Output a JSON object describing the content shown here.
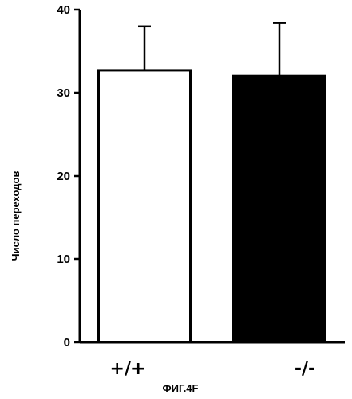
{
  "chart_data": {
    "type": "bar",
    "categories": [
      "+/+",
      "-/-"
    ],
    "values": [
      32.7,
      32.0
    ],
    "error_upper": [
      38.0,
      38.4
    ],
    "bar_fills": [
      "#ffffff",
      "#000000"
    ],
    "ylabel": "Число переходов",
    "xlabel": "",
    "ylim": [
      0,
      40
    ],
    "yticks": [
      "0",
      "10",
      "20",
      "30",
      "40"
    ],
    "grid": false
  },
  "figure": {
    "caption": "ФИГ.4F"
  }
}
